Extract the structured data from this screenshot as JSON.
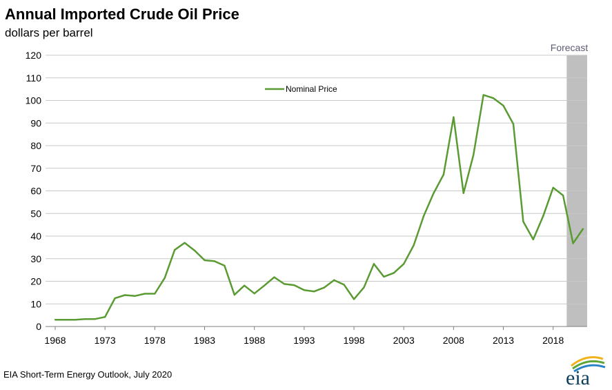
{
  "source": "EIA Short-Term Energy Outlook, July 2020",
  "logo_text": "eia",
  "colors": {
    "series": "#5a9a32",
    "forecast_band": "#bfbfbf",
    "grid": "#c8c8c8",
    "forecast_label": "#5b5b72"
  },
  "chart_data": {
    "type": "line",
    "title": "Annual Imported Crude Oil Price",
    "subtitle": "dollars per barrel",
    "xlabel": "",
    "ylabel": "",
    "ylim": [
      0,
      120
    ],
    "yticks": [
      0,
      10,
      20,
      30,
      40,
      50,
      60,
      70,
      80,
      90,
      100,
      110,
      120
    ],
    "xticks": [
      1968,
      1973,
      1978,
      1983,
      1988,
      1993,
      1998,
      2003,
      2008,
      2013,
      2018
    ],
    "xlim": [
      1968,
      2021
    ],
    "grid": true,
    "legend_position": "top-center",
    "forecast": {
      "label": "Forecast",
      "start": 2019.5,
      "end": 2021.5
    },
    "series": [
      {
        "name": "Nominal Price",
        "x": [
          1968,
          1969,
          1970,
          1971,
          1972,
          1973,
          1974,
          1975,
          1976,
          1977,
          1978,
          1979,
          1980,
          1981,
          1982,
          1983,
          1984,
          1985,
          1986,
          1987,
          1988,
          1989,
          1990,
          1991,
          1992,
          1993,
          1994,
          1995,
          1996,
          1997,
          1998,
          1999,
          2000,
          2001,
          2002,
          2003,
          2004,
          2005,
          2006,
          2007,
          2008,
          2009,
          2010,
          2011,
          2012,
          2013,
          2014,
          2015,
          2016,
          2017,
          2018,
          2019,
          2020,
          2021
        ],
        "values": [
          3.0,
          3.0,
          3.0,
          3.3,
          3.3,
          4.2,
          12.5,
          13.9,
          13.5,
          14.5,
          14.5,
          21.5,
          33.9,
          37.0,
          33.6,
          29.3,
          28.9,
          26.9,
          14.0,
          18.1,
          14.6,
          18.1,
          21.8,
          18.8,
          18.3,
          16.1,
          15.5,
          17.2,
          20.5,
          18.5,
          12.1,
          17.3,
          27.7,
          22.0,
          23.7,
          27.7,
          35.9,
          48.9,
          59.0,
          67.2,
          92.6,
          59.0,
          75.9,
          102.4,
          101.0,
          97.7,
          89.6,
          46.4,
          38.5,
          48.9,
          61.4,
          58.0,
          36.8,
          43.2
        ]
      }
    ]
  }
}
